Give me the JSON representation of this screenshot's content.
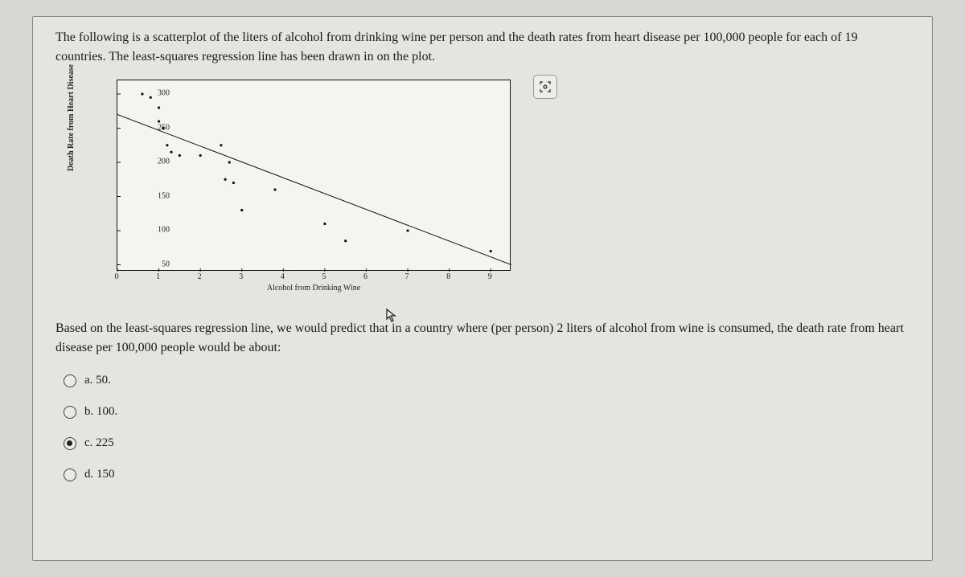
{
  "intro": "The following is a scatterplot of the liters of alcohol from drinking wine per person and the death rates from heart disease per 100,000 people for each of 19 countries. The least-squares regression line has been drawn in on the plot.",
  "question": "Based on the least-squares regression line, we would predict that in a country where (per person) 2 liters of alcohol from wine is consumed, the death rate from heart disease per 100,000 people would be about:",
  "chart": {
    "type": "scatter_with_fit",
    "xlabel": "Alcohol from Drinking Wine",
    "ylabel": "Death Rate from Heart Disease",
    "xlim": [
      0,
      9.5
    ],
    "ylim": [
      40,
      320
    ],
    "xticks": [
      0,
      1,
      2,
      3,
      4,
      5,
      6,
      7,
      8,
      9
    ],
    "yticks": [
      50,
      100,
      150,
      200,
      250,
      300
    ],
    "background_color": "#f5f4f1",
    "axis_color": "#111111",
    "point_color": "#111111",
    "point_radius": 1.6,
    "line_color": "#111111",
    "line_width": 1,
    "points": [
      [
        0.6,
        300
      ],
      [
        0.8,
        295
      ],
      [
        1.0,
        280
      ],
      [
        1.0,
        260
      ],
      [
        1.1,
        250
      ],
      [
        1.2,
        225
      ],
      [
        1.3,
        215
      ],
      [
        1.5,
        210
      ],
      [
        2.0,
        210
      ],
      [
        2.5,
        225
      ],
      [
        2.6,
        175
      ],
      [
        2.7,
        200
      ],
      [
        2.8,
        170
      ],
      [
        3.0,
        130
      ],
      [
        3.8,
        160
      ],
      [
        5.0,
        110
      ],
      [
        5.5,
        85
      ],
      [
        7.0,
        100
      ],
      [
        9.0,
        70
      ]
    ],
    "fit_line": {
      "x1": 0,
      "y1": 270,
      "x2": 9.5,
      "y2": 50
    }
  },
  "options": [
    {
      "id": "a",
      "label": "a. 50.",
      "checked": false
    },
    {
      "id": "b",
      "label": "b. 100.",
      "checked": false
    },
    {
      "id": "c",
      "label": "c. 225",
      "checked": true
    },
    {
      "id": "d",
      "label": "d. 150",
      "checked": false
    }
  ],
  "icons": {
    "capture": "⛶",
    "cursor": "↖"
  }
}
